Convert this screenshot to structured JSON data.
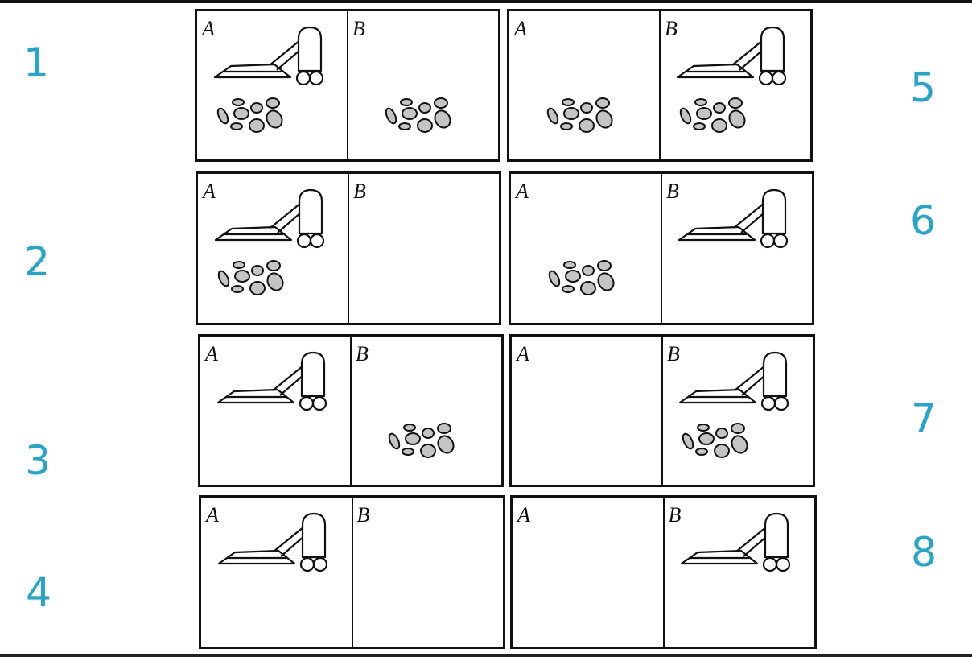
{
  "colors": {
    "number": "#2aa3c4",
    "line": "#111111",
    "dirt_fill": "#c4c4c4"
  },
  "room_labels": {
    "left": "A",
    "right": "B"
  },
  "states": [
    {
      "id": "1",
      "vacuum_room": "A",
      "dirt": [
        "A",
        "B"
      ]
    },
    {
      "id": "2",
      "vacuum_room": "A",
      "dirt": [
        "A"
      ]
    },
    {
      "id": "3",
      "vacuum_room": "A",
      "dirt": [
        "B"
      ]
    },
    {
      "id": "4",
      "vacuum_room": "A",
      "dirt": []
    },
    {
      "id": "5",
      "vacuum_room": "B",
      "dirt": [
        "A",
        "B"
      ]
    },
    {
      "id": "6",
      "vacuum_room": "B",
      "dirt": [
        "A"
      ]
    },
    {
      "id": "7",
      "vacuum_room": "B",
      "dirt": [
        "B"
      ]
    },
    {
      "id": "8",
      "vacuum_room": "B",
      "dirt": []
    }
  ]
}
